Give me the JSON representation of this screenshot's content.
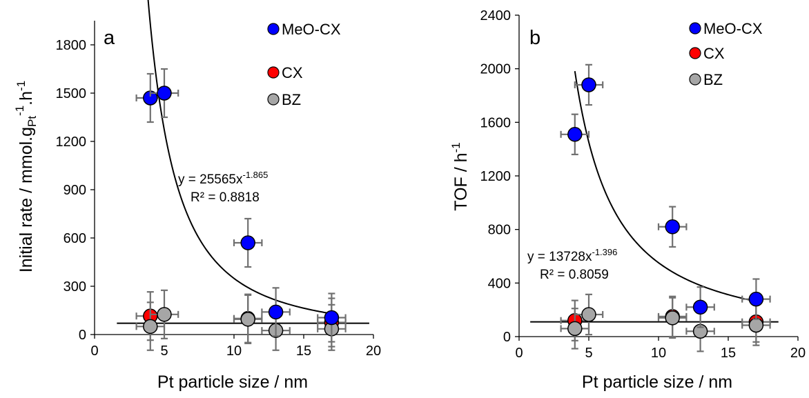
{
  "colors": {
    "MeO-CX": "#0000ff",
    "CX": "#ff0000",
    "BZ": "#a6a6a6",
    "errorbar": "#707070",
    "marker_edge": "#000000"
  },
  "chart_data": [
    {
      "type": "scatter",
      "panel_label": "a",
      "xlabel": "Pt particle size / nm",
      "ylabel_main": "Initial rate / mmol.g",
      "ylabel_sub": "Pt",
      "ylabel_sup1": "-1",
      "ylabel_mid": ".h",
      "ylabel_sup2": "-1",
      "xlim": [
        0,
        20
      ],
      "ylim": [
        0,
        1950
      ],
      "xticks": [
        0,
        5,
        10,
        15,
        20
      ],
      "yticks": [
        0,
        300,
        600,
        900,
        1200,
        1500,
        1800
      ],
      "legend": [
        "MeO-CX",
        "CX",
        "BZ"
      ],
      "legend_position": "top-right",
      "series": [
        {
          "name": "MeO-CX",
          "x": [
            4,
            5,
            11,
            13,
            17
          ],
          "y": [
            1470,
            1500,
            570,
            140,
            105
          ],
          "xerr": [
            1,
            1,
            1,
            1,
            1
          ],
          "yerr": [
            150,
            150,
            150,
            150,
            150
          ]
        },
        {
          "name": "CX",
          "x": [
            4,
            11,
            17
          ],
          "y": [
            115,
            100,
            75
          ],
          "xerr": [
            1,
            1,
            1
          ],
          "yerr": [
            150,
            150,
            150
          ]
        },
        {
          "name": "BZ",
          "x": [
            4,
            5,
            11,
            13,
            17
          ],
          "y": [
            50,
            125,
            95,
            25,
            35
          ],
          "xerr": [
            1,
            1,
            1,
            1,
            1
          ],
          "yerr": [
            150,
            150,
            150,
            150,
            150
          ]
        }
      ],
      "fit_power": {
        "a": 25565,
        "b": -1.865,
        "x_range": [
          3.8,
          17
        ],
        "series": "MeO-CX"
      },
      "fit_flat": {
        "y": 70,
        "x_range": [
          1.6,
          19.7
        ]
      },
      "equation_main": "y = 25565x",
      "equation_exp": "-1.865",
      "r2": "R² = 0.8818"
    },
    {
      "type": "scatter",
      "panel_label": "b",
      "xlabel": "Pt particle size / nm",
      "ylabel_main": "TOF / h",
      "ylabel_sup": "-1",
      "xlim": [
        0,
        20
      ],
      "ylim": [
        0,
        2400
      ],
      "xticks": [
        0,
        5,
        10,
        15,
        20
      ],
      "yticks": [
        0,
        400,
        800,
        1200,
        1600,
        2000,
        2400
      ],
      "legend": [
        "MeO-CX",
        "CX",
        "BZ"
      ],
      "legend_position": "top-right",
      "series": [
        {
          "name": "MeO-CX",
          "x": [
            4,
            5,
            11,
            13,
            17
          ],
          "y": [
            1510,
            1880,
            820,
            220,
            280
          ],
          "xerr": [
            1,
            1,
            1,
            1,
            1
          ],
          "yerr": [
            150,
            150,
            150,
            150,
            150
          ]
        },
        {
          "name": "CX",
          "x": [
            4,
            11,
            17
          ],
          "y": [
            120,
            150,
            110
          ],
          "xerr": [
            1,
            1,
            1
          ],
          "yerr": [
            150,
            150,
            150
          ]
        },
        {
          "name": "BZ",
          "x": [
            4,
            5,
            11,
            13,
            17
          ],
          "y": [
            60,
            165,
            140,
            40,
            85
          ],
          "xerr": [
            1,
            1,
            1,
            1,
            1
          ],
          "yerr": [
            150,
            150,
            150,
            150,
            150
          ]
        }
      ],
      "fit_power": {
        "a": 13728,
        "b": -1.396,
        "x_range": [
          4,
          17
        ],
        "series": "MeO-CX"
      },
      "fit_flat": {
        "y": 110,
        "x_range": [
          0.8,
          18.6
        ]
      },
      "equation_main": "y = 13728x",
      "equation_exp": "-1.396",
      "r2": "R² = 0.8059"
    }
  ]
}
